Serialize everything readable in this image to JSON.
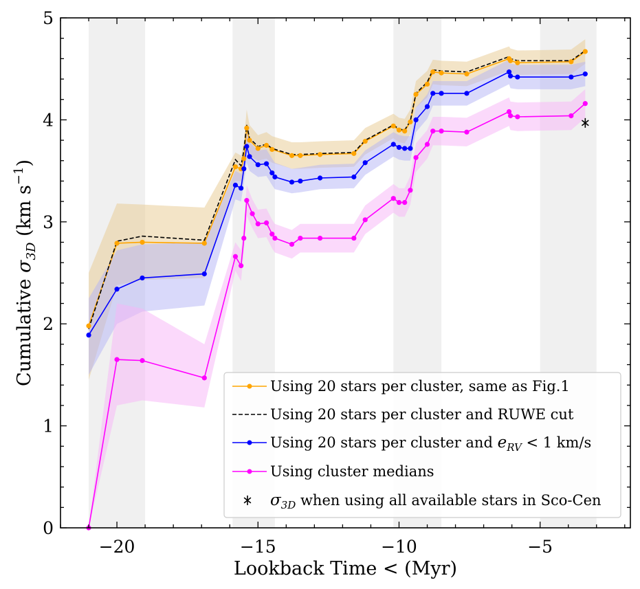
{
  "chart_data": {
    "type": "line",
    "xlabel": "Lookback Time < (Myr)",
    "ylabel_prefix": "Cumulative ",
    "ylabel_sigma": "σ",
    "ylabel_sub": "3D",
    "ylabel_unit_open": " (km s",
    "ylabel_unit_sup": "−1",
    "ylabel_unit_close": ")",
    "xlim": [
      -22,
      -1.8
    ],
    "ylim": [
      0,
      5
    ],
    "xticks": [
      {
        "value": -20,
        "label": "−20"
      },
      {
        "value": -15,
        "label": "−15"
      },
      {
        "value": -10,
        "label": "−10"
      },
      {
        "value": -5,
        "label": "−5"
      }
    ],
    "yticks": [
      {
        "value": 0,
        "label": "0"
      },
      {
        "value": 1,
        "label": "1"
      },
      {
        "value": 2,
        "label": "2"
      },
      {
        "value": 3,
        "label": "3"
      },
      {
        "value": 4,
        "label": "4"
      },
      {
        "value": 5,
        "label": "5"
      }
    ],
    "shaded_bands": [
      [
        -21.0,
        -19.0
      ],
      [
        -15.9,
        -14.4
      ],
      [
        -10.2,
        -8.5
      ],
      [
        -5.0,
        -3.0
      ]
    ],
    "series": [
      {
        "name": "Using 20 stars per cluster, same as Fig.1",
        "color": "#ffa500",
        "band_color": "#e8c990",
        "style": "solid-markers",
        "points": [
          [
            -21.0,
            1.98
          ],
          [
            -20.0,
            2.79
          ],
          [
            -19.1,
            2.8
          ],
          [
            -16.9,
            2.79
          ],
          [
            -15.8,
            3.54
          ],
          [
            -15.6,
            3.52
          ],
          [
            -15.5,
            3.62
          ],
          [
            -15.4,
            3.92
          ],
          [
            -15.3,
            3.8
          ],
          [
            -15.0,
            3.72
          ],
          [
            -14.7,
            3.75
          ],
          [
            -14.5,
            3.71
          ],
          [
            -13.8,
            3.65
          ],
          [
            -13.5,
            3.65
          ],
          [
            -12.8,
            3.66
          ],
          [
            -11.6,
            3.67
          ],
          [
            -11.2,
            3.79
          ],
          [
            -10.2,
            3.94
          ],
          [
            -10.0,
            3.9
          ],
          [
            -9.8,
            3.89
          ],
          [
            -9.6,
            3.98
          ],
          [
            -9.4,
            4.25
          ],
          [
            -9.0,
            4.35
          ],
          [
            -8.8,
            4.47
          ],
          [
            -8.5,
            4.46
          ],
          [
            -7.6,
            4.45
          ],
          [
            -6.1,
            4.6
          ],
          [
            -6.05,
            4.58
          ],
          [
            -5.8,
            4.56
          ],
          [
            -3.9,
            4.57
          ],
          [
            -3.4,
            4.67
          ]
        ],
        "lower": [
          1.45,
          2.38,
          2.43,
          2.45,
          3.4,
          3.4,
          3.45,
          3.72,
          3.65,
          3.6,
          3.62,
          3.58,
          3.52,
          3.52,
          3.53,
          3.54,
          3.66,
          3.82,
          3.78,
          3.77,
          3.86,
          4.12,
          4.22,
          4.35,
          4.34,
          4.33,
          4.48,
          4.46,
          4.44,
          4.45,
          4.55
        ],
        "upper": [
          2.5,
          3.18,
          3.17,
          3.14,
          3.68,
          3.65,
          3.79,
          4.1,
          3.95,
          3.85,
          3.88,
          3.84,
          3.78,
          3.78,
          3.79,
          3.8,
          3.92,
          4.06,
          4.02,
          4.01,
          4.1,
          4.38,
          4.48,
          4.59,
          4.58,
          4.57,
          4.72,
          4.7,
          4.68,
          4.69,
          4.79
        ]
      },
      {
        "name": "Using 20 stars per cluster and RUWE cut",
        "color": "#000000",
        "style": "dashed",
        "points": [
          [
            -21.0,
            1.95
          ],
          [
            -20.0,
            2.81
          ],
          [
            -19.1,
            2.86
          ],
          [
            -16.9,
            2.82
          ],
          [
            -15.8,
            3.61
          ],
          [
            -15.6,
            3.55
          ],
          [
            -15.5,
            3.7
          ],
          [
            -15.4,
            3.95
          ],
          [
            -15.3,
            3.82
          ],
          [
            -15.0,
            3.74
          ],
          [
            -14.7,
            3.76
          ],
          [
            -14.5,
            3.72
          ],
          [
            -13.8,
            3.66
          ],
          [
            -13.5,
            3.66
          ],
          [
            -12.8,
            3.67
          ],
          [
            -11.6,
            3.68
          ],
          [
            -11.2,
            3.8
          ],
          [
            -10.2,
            3.95
          ],
          [
            -10.0,
            3.91
          ],
          [
            -9.8,
            3.9
          ],
          [
            -9.6,
            3.99
          ],
          [
            -9.4,
            4.26
          ],
          [
            -9.0,
            4.37
          ],
          [
            -8.8,
            4.49
          ],
          [
            -8.5,
            4.48
          ],
          [
            -7.6,
            4.47
          ],
          [
            -6.1,
            4.62
          ],
          [
            -6.05,
            4.6
          ],
          [
            -5.8,
            4.58
          ],
          [
            -3.9,
            4.58
          ],
          [
            -3.4,
            4.68
          ]
        ]
      },
      {
        "name": "Using 20 stars per cluster and ",
        "name_math": "e",
        "name_sub": "RV",
        "name_tail": " < 1 km/s",
        "color": "#0000ff",
        "band_color": "#b3b3f5",
        "style": "solid-markers",
        "points": [
          [
            -21.0,
            1.89
          ],
          [
            -20.0,
            2.34
          ],
          [
            -19.1,
            2.45
          ],
          [
            -16.9,
            2.49
          ],
          [
            -15.8,
            3.36
          ],
          [
            -15.6,
            3.33
          ],
          [
            -15.5,
            3.52
          ],
          [
            -15.4,
            3.74
          ],
          [
            -15.3,
            3.64
          ],
          [
            -15.0,
            3.56
          ],
          [
            -14.7,
            3.57
          ],
          [
            -14.5,
            3.48
          ],
          [
            -14.4,
            3.44
          ],
          [
            -13.8,
            3.39
          ],
          [
            -13.5,
            3.4
          ],
          [
            -12.8,
            3.43
          ],
          [
            -11.6,
            3.44
          ],
          [
            -11.2,
            3.58
          ],
          [
            -10.2,
            3.76
          ],
          [
            -10.0,
            3.73
          ],
          [
            -9.8,
            3.72
          ],
          [
            -9.6,
            3.72
          ],
          [
            -9.4,
            4.0
          ],
          [
            -9.0,
            4.13
          ],
          [
            -8.8,
            4.26
          ],
          [
            -8.5,
            4.26
          ],
          [
            -7.6,
            4.26
          ],
          [
            -6.1,
            4.47
          ],
          [
            -6.05,
            4.43
          ],
          [
            -5.8,
            4.42
          ],
          [
            -3.9,
            4.42
          ],
          [
            -3.4,
            4.45
          ]
        ],
        "lower": [
          1.5,
          2.0,
          2.12,
          2.18,
          3.22,
          3.2,
          3.38,
          3.58,
          3.5,
          3.44,
          3.45,
          3.36,
          3.32,
          3.28,
          3.29,
          3.32,
          3.33,
          3.46,
          3.64,
          3.61,
          3.6,
          3.6,
          3.88,
          4.01,
          4.14,
          4.14,
          4.14,
          4.35,
          4.31,
          4.3,
          4.3,
          4.33
        ],
        "upper": [
          2.25,
          2.72,
          2.78,
          2.8,
          3.5,
          3.47,
          3.66,
          3.9,
          3.78,
          3.7,
          3.71,
          3.62,
          3.58,
          3.52,
          3.53,
          3.56,
          3.57,
          3.7,
          3.88,
          3.85,
          3.84,
          3.84,
          4.12,
          4.25,
          4.38,
          4.38,
          4.38,
          4.59,
          4.55,
          4.54,
          4.54,
          4.57
        ]
      },
      {
        "name": "Using cluster medians",
        "color": "#ff00ff",
        "band_color": "#f7b3f7",
        "style": "solid-markers",
        "points": [
          [
            -21.0,
            0.0
          ],
          [
            -20.0,
            1.65
          ],
          [
            -19.1,
            1.64
          ],
          [
            -16.9,
            1.47
          ],
          [
            -15.8,
            2.66
          ],
          [
            -15.6,
            2.57
          ],
          [
            -15.5,
            2.84
          ],
          [
            -15.4,
            3.21
          ],
          [
            -15.2,
            3.08
          ],
          [
            -15.0,
            2.98
          ],
          [
            -14.7,
            2.99
          ],
          [
            -14.5,
            2.88
          ],
          [
            -14.4,
            2.84
          ],
          [
            -13.8,
            2.78
          ],
          [
            -13.5,
            2.84
          ],
          [
            -12.8,
            2.84
          ],
          [
            -11.6,
            2.84
          ],
          [
            -11.2,
            3.02
          ],
          [
            -10.2,
            3.23
          ],
          [
            -10.0,
            3.19
          ],
          [
            -9.8,
            3.19
          ],
          [
            -9.6,
            3.31
          ],
          [
            -9.4,
            3.63
          ],
          [
            -9.0,
            3.76
          ],
          [
            -8.8,
            3.89
          ],
          [
            -8.5,
            3.89
          ],
          [
            -7.6,
            3.88
          ],
          [
            -6.1,
            4.08
          ],
          [
            -6.05,
            4.04
          ],
          [
            -5.8,
            4.03
          ],
          [
            -3.9,
            4.04
          ],
          [
            -3.4,
            4.16
          ]
        ],
        "lower": [
          0.0,
          1.2,
          1.25,
          1.18,
          2.52,
          2.42,
          2.7,
          3.06,
          2.94,
          2.84,
          2.85,
          2.74,
          2.7,
          2.64,
          2.7,
          2.7,
          2.7,
          2.88,
          3.09,
          3.05,
          3.05,
          3.17,
          3.49,
          3.62,
          3.75,
          3.75,
          3.74,
          3.94,
          3.9,
          3.89,
          3.9,
          4.02
        ],
        "upper": [
          0.0,
          2.2,
          2.15,
          1.8,
          2.8,
          2.72,
          2.98,
          3.36,
          3.22,
          3.12,
          3.13,
          3.02,
          2.98,
          2.92,
          2.98,
          2.98,
          2.98,
          3.16,
          3.37,
          3.33,
          3.33,
          3.45,
          3.77,
          3.9,
          4.03,
          4.03,
          4.02,
          4.22,
          4.18,
          4.17,
          4.18,
          4.3
        ]
      }
    ],
    "reference_point": {
      "name_prefix": "σ",
      "name_sub": "3D",
      "name_tail": " when using all available stars in Sco-Cen",
      "x": -3.4,
      "y": 3.97,
      "color": "#000000"
    },
    "legend_placement": "lower-right"
  }
}
